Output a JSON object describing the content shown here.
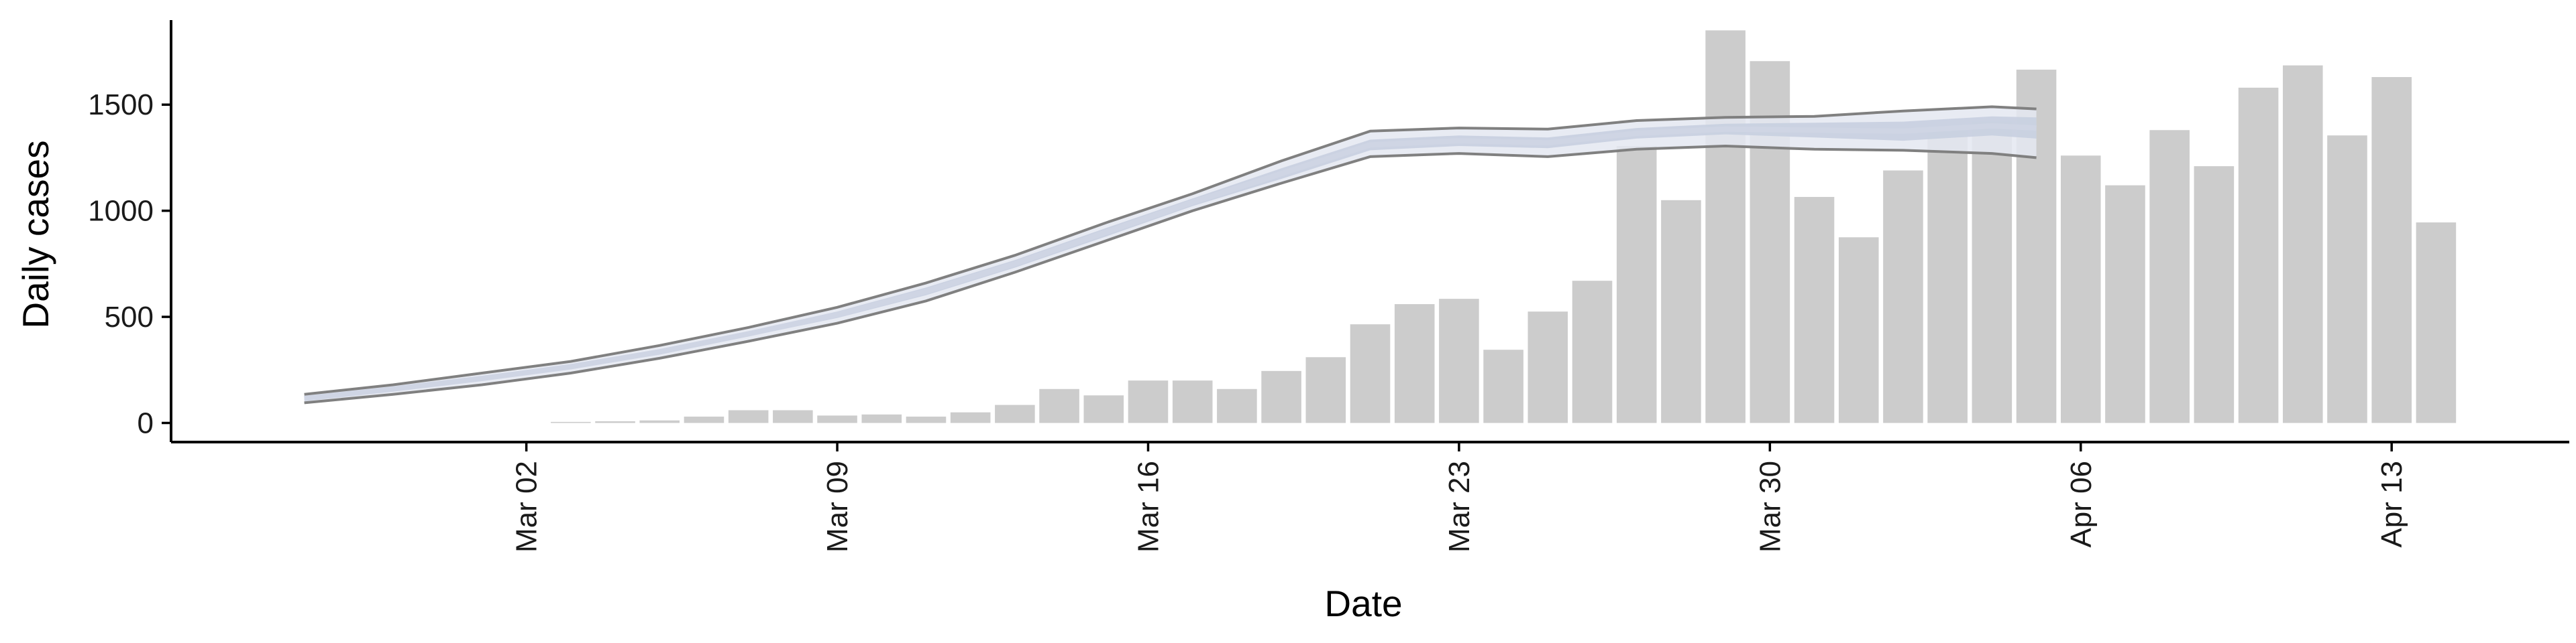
{
  "chart_data": {
    "type": "bar",
    "xlabel": "Date",
    "ylabel": "Daily cases",
    "ylim": [
      -90,
      1930
    ],
    "y_ticks": [
      0,
      500,
      1000,
      1500
    ],
    "y_tick_labels": [
      "0",
      "500",
      "1000",
      "1500"
    ],
    "x_tick_labels": [
      "Mar 02",
      "Mar 09",
      "Mar 16",
      "Mar 23",
      "Mar 30",
      "Apr 06",
      "Apr 13"
    ],
    "x_tick_dates": [
      "2020-03-02",
      "2020-03-09",
      "2020-03-16",
      "2020-03-23",
      "2020-03-30",
      "2020-04-06",
      "2020-04-13"
    ],
    "xlim": [
      "2020-02-23",
      "2020-04-17"
    ],
    "grid": false,
    "legend": "none",
    "colors": {
      "bars": "#cccccc",
      "band_inner": "#c8cfe0",
      "band_outer": "#e4e8f1",
      "estimate_line": "#cfd5e4",
      "bound_lines": "#808080",
      "axis": "#000000"
    },
    "bars": {
      "dates": [
        "2020-03-03",
        "2020-03-04",
        "2020-03-05",
        "2020-03-06",
        "2020-03-07",
        "2020-03-08",
        "2020-03-09",
        "2020-03-10",
        "2020-03-11",
        "2020-03-12",
        "2020-03-13",
        "2020-03-14",
        "2020-03-15",
        "2020-03-16",
        "2020-03-17",
        "2020-03-18",
        "2020-03-19",
        "2020-03-20",
        "2020-03-21",
        "2020-03-22",
        "2020-03-23",
        "2020-03-24",
        "2020-03-25",
        "2020-03-26",
        "2020-03-27",
        "2020-03-28",
        "2020-03-29",
        "2020-03-30",
        "2020-03-31",
        "2020-04-01",
        "2020-04-02",
        "2020-04-03",
        "2020-04-04",
        "2020-04-05",
        "2020-04-06",
        "2020-04-07",
        "2020-04-08",
        "2020-04-09",
        "2020-04-10",
        "2020-04-11",
        "2020-04-12",
        "2020-04-13",
        "2020-04-14"
      ],
      "values": [
        5,
        8,
        12,
        30,
        60,
        60,
        35,
        40,
        30,
        50,
        85,
        160,
        130,
        200,
        200,
        160,
        245,
        310,
        465,
        560,
        585,
        345,
        525,
        670,
        1305,
        1050,
        1850,
        1705,
        1065,
        875,
        1190,
        1380,
        1420,
        1665,
        1260,
        1120,
        1380,
        1210,
        1580,
        1685,
        1355,
        1630,
        945
      ]
    },
    "series": [
      {
        "role": "estimate",
        "dates": [
          "2020-02-26",
          "2020-02-28",
          "2020-03-01",
          "2020-03-03",
          "2020-03-05",
          "2020-03-07",
          "2020-03-09",
          "2020-03-11",
          "2020-03-13",
          "2020-03-15",
          "2020-03-17",
          "2020-03-19",
          "2020-03-21",
          "2020-03-23",
          "2020-03-25",
          "2020-03-27",
          "2020-03-29",
          "2020-03-31",
          "2020-04-02",
          "2020-04-04",
          "2020-04-05"
        ],
        "values": [
          115,
          160,
          210,
          265,
          335,
          420,
          510,
          620,
          750,
          895,
          1040,
          1175,
          1310,
          1330,
          1320,
          1365,
          1385,
          1380,
          1375,
          1400,
          1390
        ]
      },
      {
        "role": "upper",
        "dates": [
          "2020-02-26",
          "2020-02-28",
          "2020-03-01",
          "2020-03-03",
          "2020-03-05",
          "2020-03-07",
          "2020-03-09",
          "2020-03-11",
          "2020-03-13",
          "2020-03-15",
          "2020-03-17",
          "2020-03-19",
          "2020-03-21",
          "2020-03-23",
          "2020-03-25",
          "2020-03-27",
          "2020-03-29",
          "2020-03-31",
          "2020-04-02",
          "2020-04-04",
          "2020-04-05"
        ],
        "values": [
          135,
          180,
          235,
          290,
          365,
          450,
          545,
          660,
          790,
          940,
          1080,
          1235,
          1375,
          1390,
          1385,
          1425,
          1440,
          1445,
          1470,
          1490,
          1480
        ]
      },
      {
        "role": "lower",
        "dates": [
          "2020-02-26",
          "2020-02-28",
          "2020-03-01",
          "2020-03-03",
          "2020-03-05",
          "2020-03-07",
          "2020-03-09",
          "2020-03-11",
          "2020-03-13",
          "2020-03-15",
          "2020-03-17",
          "2020-03-19",
          "2020-03-21",
          "2020-03-23",
          "2020-03-25",
          "2020-03-27",
          "2020-03-29",
          "2020-03-31",
          "2020-04-02",
          "2020-04-04",
          "2020-04-05"
        ],
        "values": [
          95,
          135,
          180,
          235,
          305,
          385,
          470,
          575,
          710,
          855,
          1000,
          1130,
          1255,
          1270,
          1255,
          1290,
          1305,
          1290,
          1285,
          1270,
          1250
        ]
      },
      {
        "role": "band-inner-upper",
        "dates": [
          "2020-02-26",
          "2020-02-28",
          "2020-03-01",
          "2020-03-03",
          "2020-03-05",
          "2020-03-07",
          "2020-03-09",
          "2020-03-11",
          "2020-03-13",
          "2020-03-15",
          "2020-03-17",
          "2020-03-19",
          "2020-03-21",
          "2020-03-23",
          "2020-03-25",
          "2020-03-27",
          "2020-03-29",
          "2020-03-31",
          "2020-04-02",
          "2020-04-04",
          "2020-04-05"
        ],
        "values": [
          122,
          168,
          220,
          276,
          348,
          432,
          525,
          638,
          768,
          915,
          1058,
          1200,
          1335,
          1355,
          1345,
          1390,
          1410,
          1415,
          1420,
          1445,
          1440
        ]
      },
      {
        "role": "band-inner-lower",
        "dates": [
          "2020-02-26",
          "2020-02-28",
          "2020-03-01",
          "2020-03-03",
          "2020-03-05",
          "2020-03-07",
          "2020-03-09",
          "2020-03-11",
          "2020-03-13",
          "2020-03-15",
          "2020-03-17",
          "2020-03-19",
          "2020-03-21",
          "2020-03-23",
          "2020-03-25",
          "2020-03-27",
          "2020-03-29",
          "2020-03-31",
          "2020-04-02",
          "2020-04-04",
          "2020-04-05"
        ],
        "values": [
          108,
          152,
          200,
          254,
          322,
          408,
          495,
          602,
          732,
          875,
          1022,
          1150,
          1285,
          1305,
          1295,
          1340,
          1360,
          1345,
          1330,
          1355,
          1340
        ]
      }
    ]
  }
}
